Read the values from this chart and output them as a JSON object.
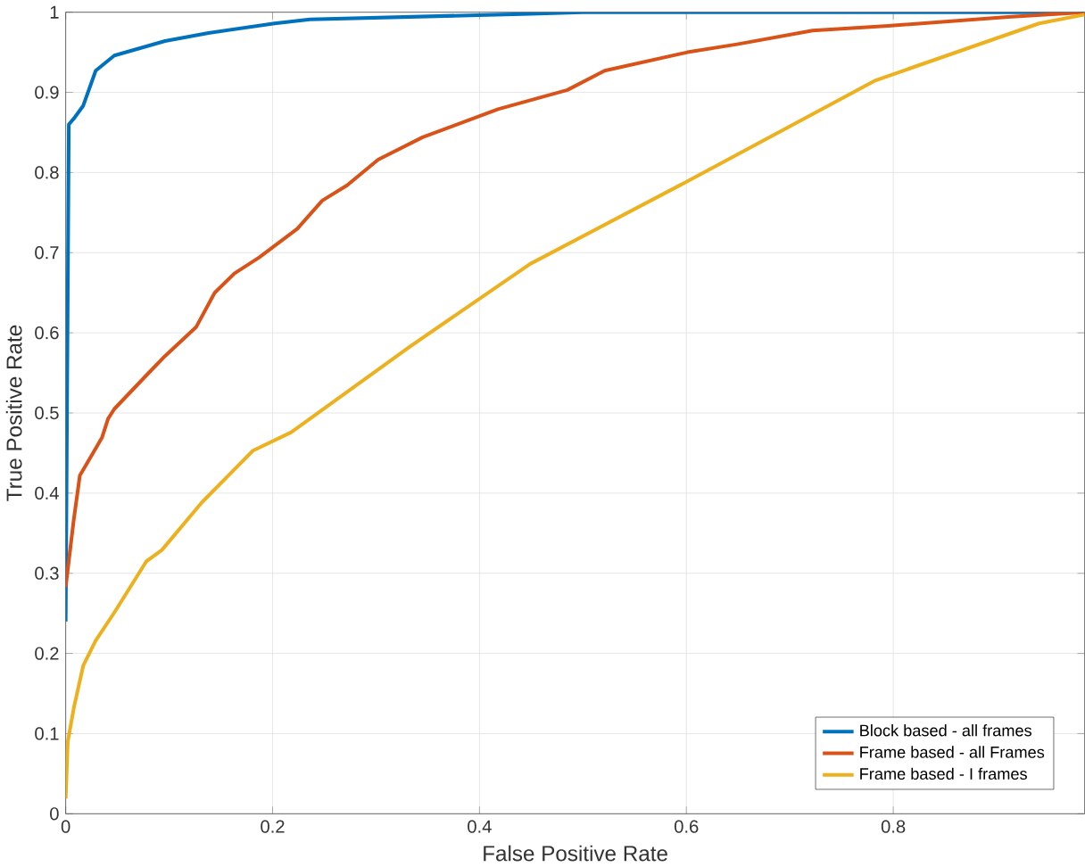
{
  "chart_data": {
    "type": "line",
    "xlabel": "False Positive Rate",
    "ylabel": "True Positive Rate",
    "xlim": [
      0,
      0.985
    ],
    "ylim": [
      0,
      1
    ],
    "xticks": [
      0,
      0.2,
      0.4,
      0.6,
      0.8
    ],
    "yticks": [
      0,
      0.1,
      0.2,
      0.3,
      0.4,
      0.5,
      0.6,
      0.7,
      0.8,
      0.9,
      1
    ],
    "grid": true,
    "legend": "bottom right",
    "line_style": "solid",
    "marker": "none",
    "series": [
      {
        "name": "Block based - all frames",
        "color": "#0072bd",
        "x": [
          0,
          0.003,
          0.0077,
          0.0168,
          0.029,
          0.047,
          0.096,
          0.138,
          0.202,
          0.236,
          0.45,
          0.5,
          0.985
        ],
        "values": [
          0.24,
          0.86,
          0.867,
          0.883,
          0.927,
          0.946,
          0.964,
          0.974,
          0.986,
          0.991,
          0.998,
          1,
          1
        ]
      },
      {
        "name": "Frame based - all Frames",
        "color": "#d95319",
        "x": [
          0,
          0.0077,
          0.0137,
          0.035,
          0.041,
          0.047,
          0.078,
          0.096,
          0.126,
          0.144,
          0.163,
          0.187,
          0.224,
          0.248,
          0.272,
          0.302,
          0.345,
          0.418,
          0.485,
          0.521,
          0.601,
          0.649,
          0.722,
          0.795,
          0.911,
          0.985
        ],
        "values": [
          0.283,
          0.366,
          0.422,
          0.469,
          0.493,
          0.505,
          0.547,
          0.571,
          0.607,
          0.65,
          0.674,
          0.694,
          0.73,
          0.765,
          0.784,
          0.816,
          0.844,
          0.879,
          0.903,
          0.927,
          0.95,
          0.96,
          0.977,
          0.983,
          0.994,
          1
        ]
      },
      {
        "name": "Frame based - I frames",
        "color": "#edb120",
        "x": [
          0,
          0.002,
          0.008,
          0.017,
          0.029,
          0.047,
          0.078,
          0.093,
          0.132,
          0.181,
          0.218,
          0.333,
          0.449,
          0.601,
          0.783,
          0.941,
          0.985
        ],
        "values": [
          0.019,
          0.09,
          0.133,
          0.185,
          0.216,
          0.251,
          0.315,
          0.329,
          0.389,
          0.453,
          0.476,
          0.583,
          0.686,
          0.789,
          0.915,
          0.986,
          0.997
        ]
      }
    ]
  }
}
